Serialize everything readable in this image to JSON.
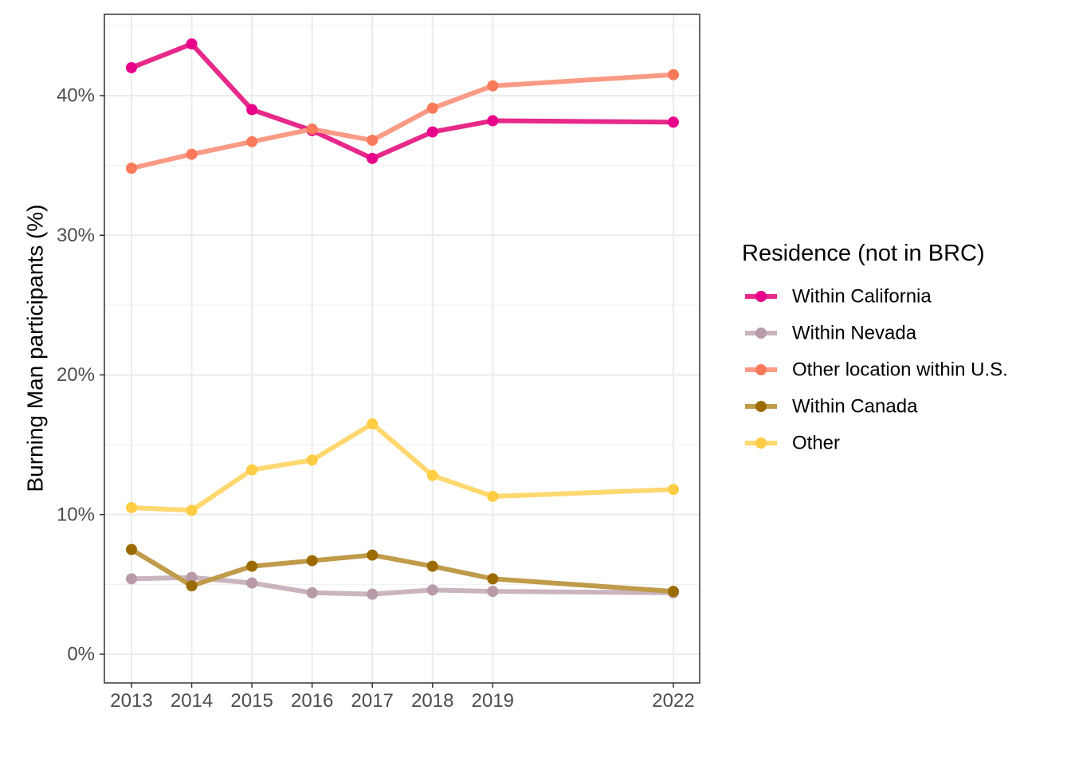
{
  "chart_data": {
    "type": "line",
    "x": [
      "2013",
      "2014",
      "2015",
      "2016",
      "2017",
      "2018",
      "2019",
      "2022"
    ],
    "ylabel": "Burning Man participants (%)",
    "xlabel": "",
    "ylim": [
      -2,
      46
    ],
    "yticks": [
      0,
      10,
      20,
      30,
      40
    ],
    "ytick_labels": [
      "0%",
      "10%",
      "20%",
      "30%",
      "40%"
    ],
    "grid": true,
    "legend": {
      "title": "Residence (not in BRC)",
      "position": "right"
    },
    "series": [
      {
        "name": "Within California",
        "color": "#e7298a",
        "point_color": "#e7008a",
        "values": [
          42.0,
          43.7,
          39.0,
          37.5,
          35.5,
          37.4,
          38.2,
          38.1
        ]
      },
      {
        "name": "Within Nevada",
        "color": "#c9b4bf",
        "point_color": "#b89aa8",
        "values": [
          5.4,
          5.5,
          5.1,
          4.4,
          4.3,
          4.6,
          4.5,
          4.4
        ]
      },
      {
        "name": "Other location within U.S.",
        "color": "#fb9a85",
        "point_color": "#f97a5a",
        "values": [
          34.8,
          35.8,
          36.7,
          37.6,
          36.8,
          39.1,
          40.7,
          41.5
        ]
      },
      {
        "name": "Within Canada",
        "color": "#bf9b4a",
        "point_color": "#9c6b00",
        "values": [
          7.5,
          4.9,
          6.3,
          6.7,
          7.1,
          6.3,
          5.4,
          4.5
        ]
      },
      {
        "name": "Other",
        "color": "#ffd870",
        "point_color": "#ffcc44",
        "values": [
          10.5,
          10.3,
          13.2,
          13.9,
          16.5,
          12.8,
          11.3,
          11.8
        ]
      }
    ]
  }
}
